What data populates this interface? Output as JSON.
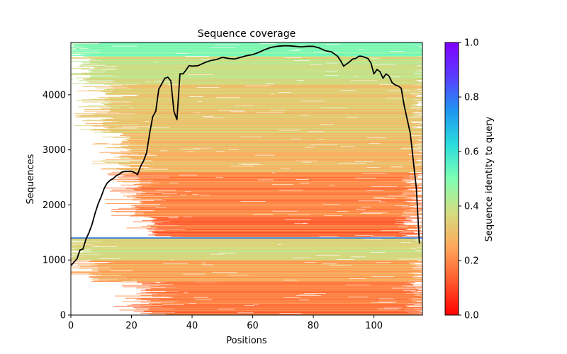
{
  "chart_data": {
    "type": "heatmap",
    "title": "Sequence coverage",
    "xlabel": "Positions",
    "ylabel": "Sequences",
    "xlim": [
      0,
      116
    ],
    "ylim": [
      0,
      4950
    ],
    "x_ticks": [
      0,
      20,
      40,
      60,
      80,
      100
    ],
    "x_tick_labels": [
      "0",
      "20",
      "40",
      "60",
      "80",
      "100"
    ],
    "y_ticks": [
      0,
      1000,
      2000,
      3000,
      4000
    ],
    "y_tick_labels": [
      "0",
      "1000",
      "2000",
      "3000",
      "4000"
    ],
    "colorbar": {
      "label": "Sequence identity to query",
      "range": [
        0,
        1
      ],
      "ticks": [
        0.0,
        0.2,
        0.4,
        0.6,
        0.8,
        1.0
      ],
      "tick_labels": [
        "0.0",
        "0.2",
        "0.4",
        "0.6",
        "0.8",
        "1.0"
      ],
      "colormap": "rainbow_r",
      "stops": [
        "#ff0000",
        "#ff5a2e",
        "#ffa85a",
        "#d4dd80",
        "#80ffb4",
        "#2adddd",
        "#1e96f0",
        "#5a3cff",
        "#8000ff"
      ]
    },
    "query_row": {
      "sequence_index": 1400,
      "identity": 1.0,
      "color": "#1f6fe0"
    },
    "coverage_line": {
      "color": "#000000",
      "x": [
        0,
        1,
        2,
        3,
        4,
        5,
        6,
        7,
        8,
        9,
        10,
        11,
        12,
        13,
        14,
        15,
        16,
        17,
        18,
        19,
        20,
        21,
        22,
        23,
        24,
        25,
        26,
        27,
        28,
        29,
        30,
        31,
        32,
        33,
        34,
        35,
        36,
        37,
        38,
        39,
        40,
        42,
        44,
        46,
        48,
        50,
        52,
        54,
        56,
        58,
        60,
        62,
        64,
        66,
        68,
        70,
        72,
        74,
        76,
        78,
        80,
        82,
        84,
        86,
        88,
        89,
        90,
        91,
        92,
        93,
        94,
        95,
        96,
        97,
        98,
        99,
        100,
        101,
        102,
        103,
        104,
        105,
        106,
        107,
        108,
        109,
        110,
        111,
        112,
        113,
        114,
        115
      ],
      "y": [
        900,
        960,
        1020,
        1180,
        1200,
        1380,
        1500,
        1650,
        1850,
        2020,
        2150,
        2300,
        2400,
        2450,
        2480,
        2530,
        2560,
        2600,
        2610,
        2610,
        2610,
        2590,
        2550,
        2700,
        2800,
        2950,
        3300,
        3600,
        3700,
        4100,
        4200,
        4300,
        4320,
        4250,
        3700,
        3550,
        4380,
        4380,
        4450,
        4530,
        4520,
        4530,
        4580,
        4620,
        4640,
        4680,
        4660,
        4650,
        4680,
        4710,
        4730,
        4770,
        4820,
        4860,
        4880,
        4890,
        4890,
        4880,
        4870,
        4880,
        4880,
        4850,
        4800,
        4780,
        4700,
        4620,
        4520,
        4560,
        4600,
        4650,
        4660,
        4700,
        4700,
        4680,
        4660,
        4580,
        4380,
        4460,
        4420,
        4300,
        4380,
        4340,
        4220,
        4180,
        4160,
        4120,
        3800,
        3550,
        3300,
        2800,
        2300,
        1300
      ]
    },
    "bands": [
      {
        "from": 4700,
        "to": 4950,
        "identity": 0.5,
        "start": 0,
        "end": 116
      },
      {
        "from": 4200,
        "to": 4700,
        "identity": 0.38,
        "start": 5,
        "end": 116
      },
      {
        "from": 3300,
        "to": 4200,
        "identity": 0.32,
        "start": 12,
        "end": 115
      },
      {
        "from": 2600,
        "to": 3300,
        "identity": 0.29,
        "start": 18,
        "end": 114
      },
      {
        "from": 1800,
        "to": 2600,
        "identity": 0.2,
        "start": 22,
        "end": 112
      },
      {
        "from": 1420,
        "to": 1800,
        "identity": 0.16,
        "start": 27,
        "end": 110
      },
      {
        "from": 1000,
        "to": 1400,
        "identity": 0.36,
        "start": 0,
        "end": 116
      },
      {
        "from": 600,
        "to": 1000,
        "identity": 0.26,
        "start": 8,
        "end": 114
      },
      {
        "from": 0,
        "to": 600,
        "identity": 0.18,
        "start": 25,
        "end": 113
      }
    ]
  }
}
